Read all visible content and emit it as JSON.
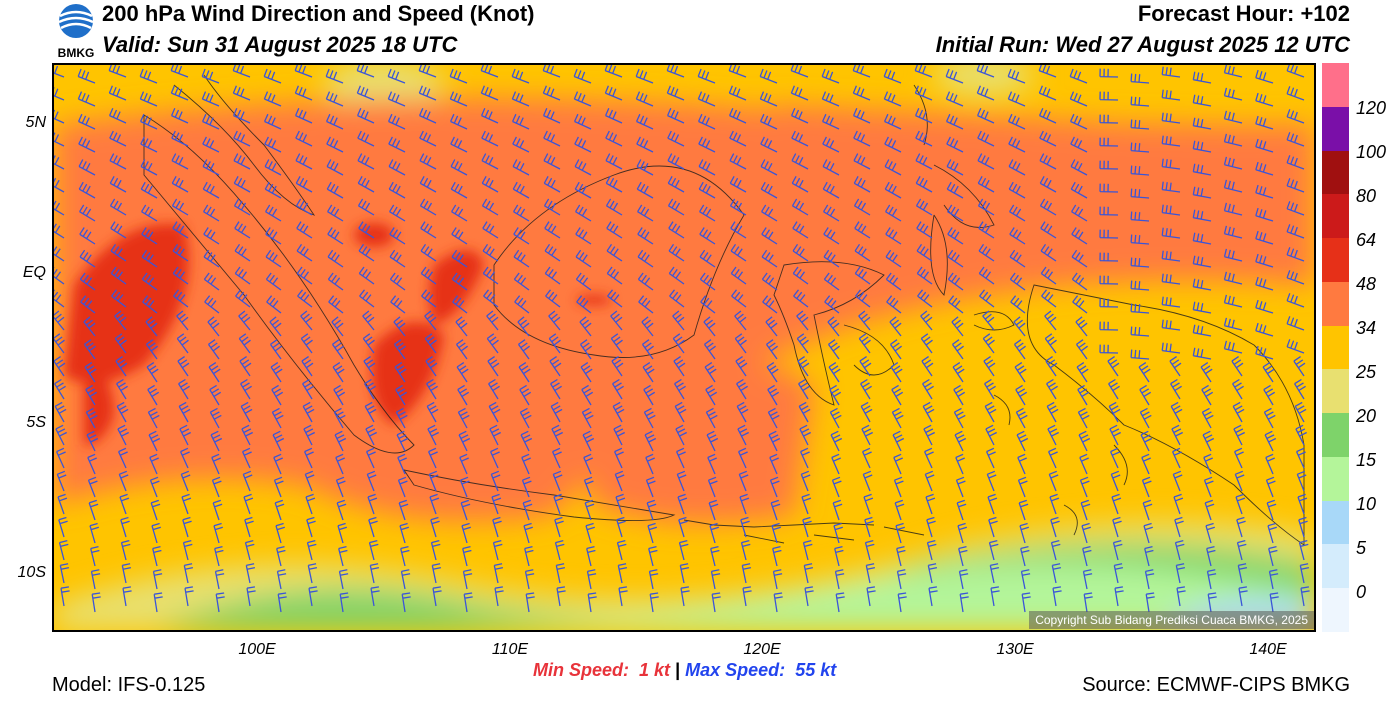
{
  "header": {
    "title": "200 hPa Wind Direction and Speed (Knot)",
    "valid": "Valid: Sun 31 August 2025 18 UTC",
    "forecast_hour": "Forecast Hour: +102",
    "initial_run": "Initial Run: Wed 27 August 2025 12 UTC",
    "logo_text": "BMKG"
  },
  "axes": {
    "y_labels": [
      "5N",
      "EQ",
      "5S",
      "10S"
    ],
    "x_labels": [
      "100E",
      "110E",
      "120E",
      "130E",
      "140E"
    ]
  },
  "colorbar": {
    "labels": [
      "120",
      "100",
      "80",
      "64",
      "48",
      "34",
      "25",
      "20",
      "15",
      "10",
      "5",
      "0"
    ],
    "colors": [
      "#ff6f8a",
      "#7a0fa8",
      "#a01010",
      "#cc1a1a",
      "#e63018",
      "#ff7a40",
      "#ffc400",
      "#e8e070",
      "#7ed36a",
      "#b4f59a",
      "#a8d8f8",
      "#d4ecfc",
      "#eef6fe"
    ]
  },
  "footer": {
    "model": "Model: IFS-0.125",
    "source": "Source: ECMWF-CIPS BMKG",
    "min_speed_label": "Min Speed:",
    "min_speed_value": "1 kt",
    "separator": "|",
    "max_speed_label": "Max Speed:",
    "max_speed_value": "55 kt",
    "copyright": "Copyright Sub Bidang Prediksi Cuaca BMKG, 2025"
  }
}
